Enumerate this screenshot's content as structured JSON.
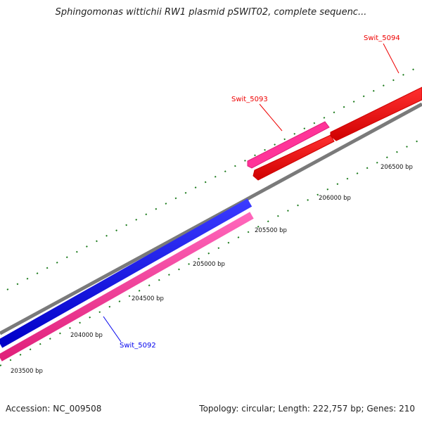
{
  "title": "Sphingomonas wittichii RW1 plasmid pSWIT02, complete sequenc...",
  "footer": {
    "accession": "Accession: NC_009508",
    "topology": "Topology: circular; Length: 222,757 bp; Genes: 210"
  },
  "ticks": [
    "203500 bp",
    "204000 bp",
    "204500 bp",
    "205000 bp",
    "205500 bp",
    "206000 bp",
    "206500 bp"
  ],
  "genes": [
    {
      "name": "Swit_5092",
      "strand": "forward",
      "color": "#0000ee"
    },
    {
      "name": "Swit_5092",
      "strand": "reverse",
      "color": "#ff3399"
    },
    {
      "name": "Swit_5093",
      "strand": "reverse",
      "color": "#ff3399"
    },
    {
      "name": "Swit_5094",
      "strand": "forward",
      "color": "#ff0000"
    },
    {
      "name": "Swit_5094",
      "strand": "forward",
      "color": "#ff0000"
    }
  ],
  "labels": {
    "swit5092": "Swit_5092",
    "swit5093": "Swit_5093",
    "swit5094": "Swit_5094"
  },
  "colors": {
    "backbone": "#888888",
    "tick_marks": "#1a7a1a",
    "label_5092": "#0000ee",
    "label_5093": "#ee0000",
    "label_5094": "#ee0000"
  }
}
